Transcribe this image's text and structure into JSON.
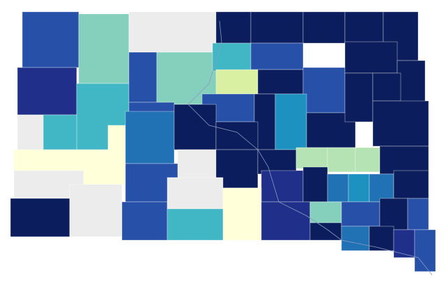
{
  "map": {
    "type": "choropleth",
    "fills": [
      "#2750a8",
      "#85d0bd",
      "#ececec",
      "#0b1d5c",
      "#0b1d5c",
      "#0b1d5c",
      "#0b1d5c",
      "#0b1d5c",
      "#1f2f8a",
      "#41b6c4",
      "#41b6c4",
      "#2750a8",
      "#85d0bd",
      "#41b6c4",
      "#2750a8",
      "#d9f0a3",
      "#0b1d5c",
      "#2750a8",
      "#0b1d5c",
      "#0b1d5c",
      "#2750a8",
      "#2750a8",
      "#0b1d5c",
      "#1d91c0",
      "#0b1d5c",
      "#0b1d5c",
      "#0b1d5c",
      "#0b1d5c",
      "#ececec",
      "#ffffd9",
      "#ffffd9",
      "#2171b5",
      "#0b1d5c",
      "#0b1d5c",
      "#ececec",
      "#0b1d5c",
      "#0b1d5c",
      "#b5e3b4",
      "#b5e3b4",
      "#b5e3b4",
      "#0b1d5c",
      "#ececec",
      "#2750a8",
      "#1f2f8a",
      "#0b1d5c",
      "#2171b5",
      "#1d91c0",
      "#2171b5",
      "#0b1d5c",
      "#0b1d5c",
      "#ececec",
      "#2750a8",
      "#ececec",
      "#41b6c4",
      "#ffffd9",
      "#1f2f8a",
      "#0b1d5c",
      "#85d0bd",
      "#2750a8",
      "#0b1d5c",
      "#2750a8",
      "#2171b5",
      "#0b1d5c",
      "#1f2f8a",
      "#2750a8"
    ]
  }
}
